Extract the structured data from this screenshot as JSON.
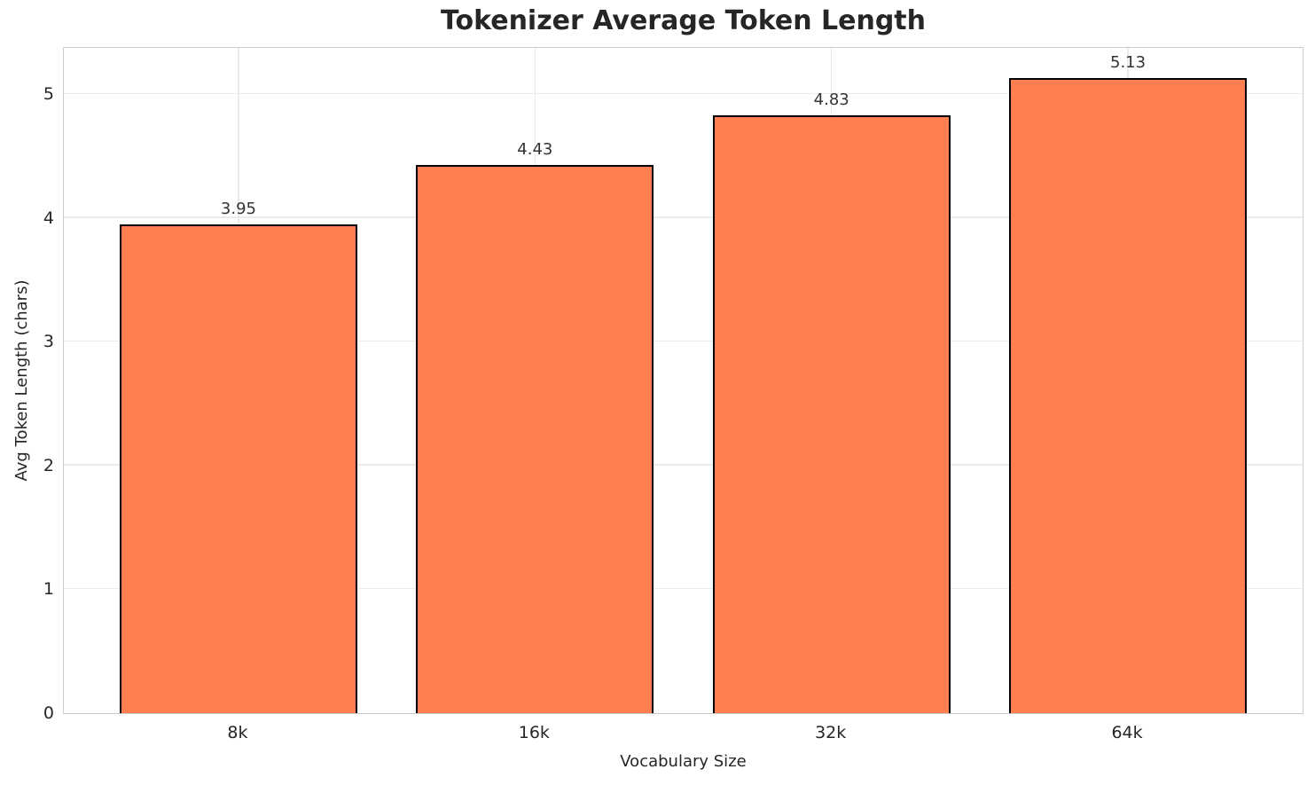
{
  "chart_data": {
    "type": "bar",
    "title": "Tokenizer Average Token Length",
    "xlabel": "Vocabulary Size",
    "ylabel": "Avg Token Length (chars)",
    "categories": [
      "8k",
      "16k",
      "32k",
      "64k"
    ],
    "values": [
      3.95,
      4.43,
      4.83,
      5.13
    ],
    "value_labels": [
      "3.95",
      "4.43",
      "4.83",
      "5.13"
    ],
    "yticks": [
      0,
      1,
      2,
      3,
      4,
      5
    ],
    "ylim": [
      0,
      5.39
    ],
    "grid": true,
    "grid_axes": "both",
    "legend_position": "none",
    "bar_color": "#FF7F50",
    "bar_edge_color": "#000000",
    "spine_color": "#cccccc",
    "grid_color": "#ebebeb",
    "text_color": "#262626",
    "background_color": "#ffffff"
  }
}
